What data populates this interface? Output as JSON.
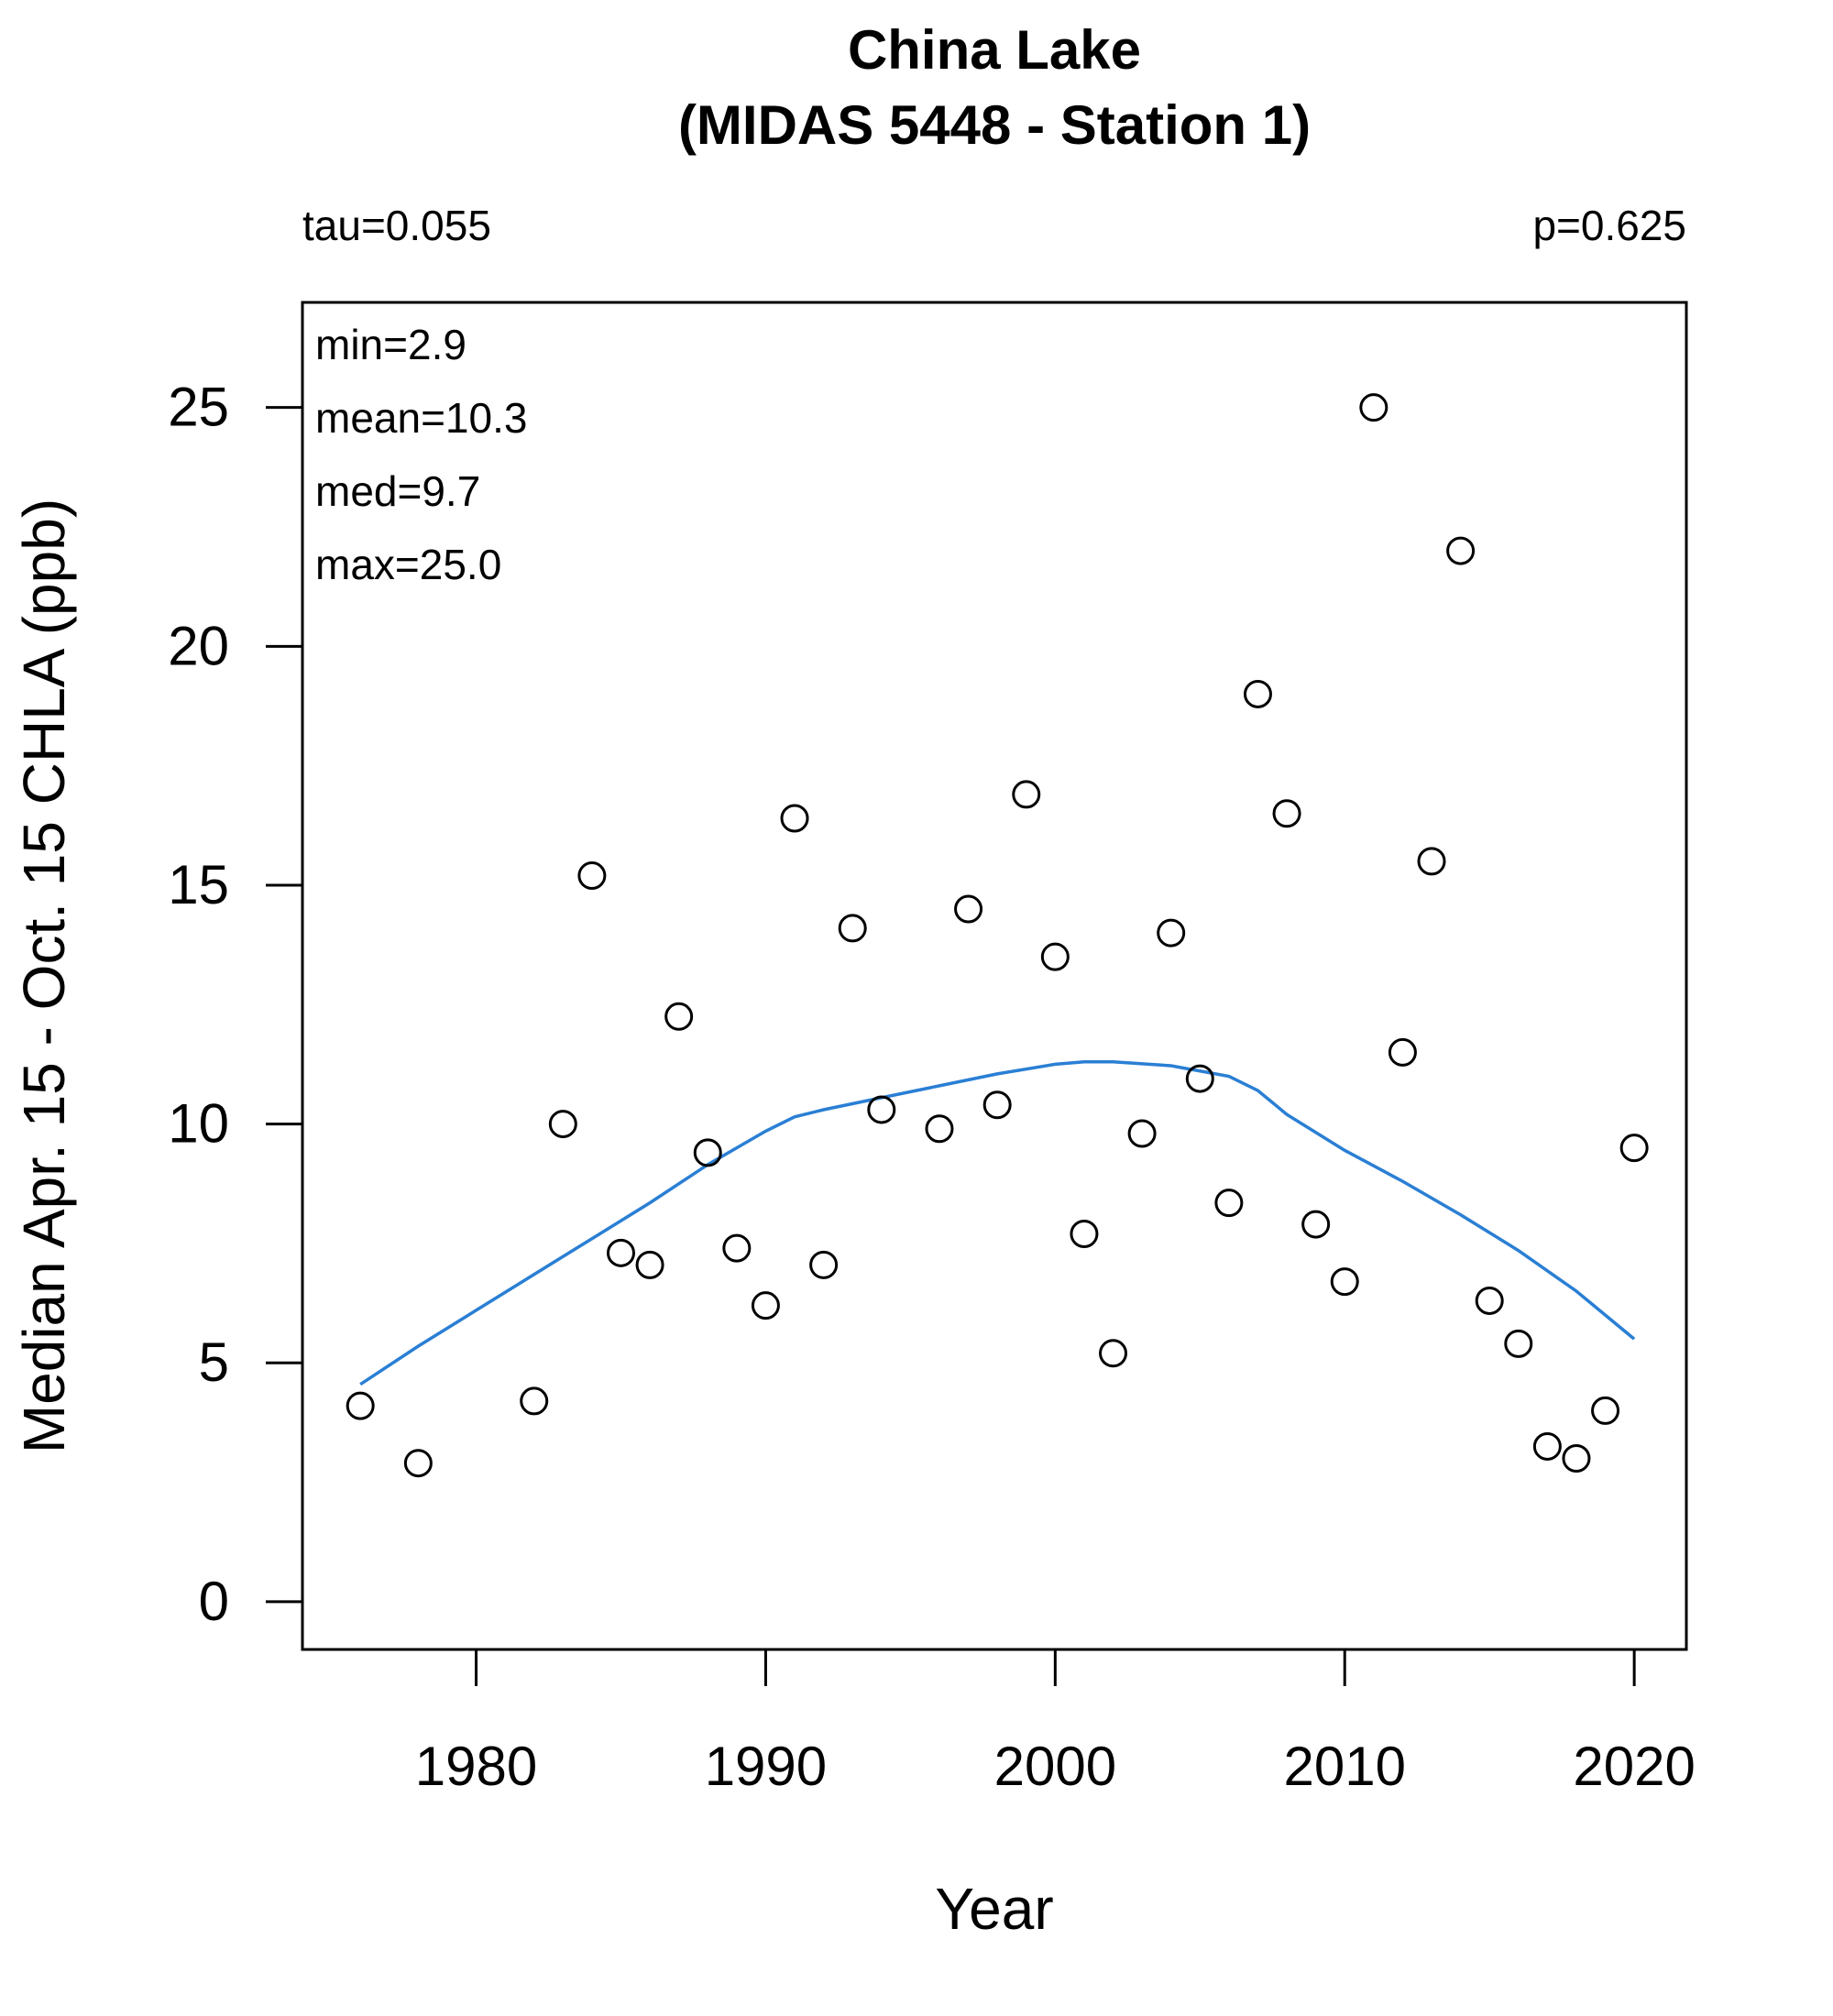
{
  "chart_data": {
    "type": "scatter",
    "title": "China Lake",
    "subtitle": "(MIDAS 5448 - Station 1)",
    "xlabel": "Year",
    "ylabel": "Median Apr. 15 - Oct. 15 CHLA (ppb)",
    "xlim": [
      1974,
      2021.8
    ],
    "ylim": [
      -1,
      27.2
    ],
    "x_ticks": [
      1980,
      1990,
      2000,
      2010,
      2020
    ],
    "y_ticks": [
      0,
      5,
      10,
      15,
      20,
      25
    ],
    "grid": false,
    "stats_top_left": "tau=0.055",
    "stats_top_right": "p=0.625",
    "summary": [
      "min=2.9",
      "mean=10.3",
      "med=9.7",
      "max=25.0"
    ],
    "trend_color": "#2a7fd4",
    "points": [
      {
        "x": 1976,
        "y": 4.1
      },
      {
        "x": 1978,
        "y": 2.9
      },
      {
        "x": 1982,
        "y": 4.2
      },
      {
        "x": 1983,
        "y": 10.0
      },
      {
        "x": 1984,
        "y": 15.2
      },
      {
        "x": 1985,
        "y": 7.3
      },
      {
        "x": 1986,
        "y": 7.05
      },
      {
        "x": 1987,
        "y": 12.25
      },
      {
        "x": 1988,
        "y": 9.4
      },
      {
        "x": 1989,
        "y": 7.4
      },
      {
        "x": 1990,
        "y": 6.2
      },
      {
        "x": 1991,
        "y": 16.4
      },
      {
        "x": 1992,
        "y": 7.05
      },
      {
        "x": 1993,
        "y": 14.1
      },
      {
        "x": 1994,
        "y": 10.3
      },
      {
        "x": 1996,
        "y": 9.9
      },
      {
        "x": 1997,
        "y": 14.5
      },
      {
        "x": 1998,
        "y": 10.4
      },
      {
        "x": 1999,
        "y": 16.9
      },
      {
        "x": 2000,
        "y": 13.5
      },
      {
        "x": 2001,
        "y": 7.7
      },
      {
        "x": 2002,
        "y": 5.2
      },
      {
        "x": 2003,
        "y": 9.8
      },
      {
        "x": 2004,
        "y": 14.0
      },
      {
        "x": 2005,
        "y": 10.95
      },
      {
        "x": 2006,
        "y": 8.35
      },
      {
        "x": 2007,
        "y": 19.0
      },
      {
        "x": 2008,
        "y": 16.5
      },
      {
        "x": 2009,
        "y": 7.9
      },
      {
        "x": 2010,
        "y": 6.7
      },
      {
        "x": 2011,
        "y": 25.0
      },
      {
        "x": 2012,
        "y": 11.5
      },
      {
        "x": 2013,
        "y": 15.5
      },
      {
        "x": 2014,
        "y": 22.0
      },
      {
        "x": 2015,
        "y": 6.3
      },
      {
        "x": 2016,
        "y": 5.4
      },
      {
        "x": 2017,
        "y": 3.25
      },
      {
        "x": 2018,
        "y": 3.0
      },
      {
        "x": 2019,
        "y": 4.0
      },
      {
        "x": 2020,
        "y": 9.5
      }
    ],
    "trend": [
      {
        "x": 1976,
        "y": 4.55
      },
      {
        "x": 1978,
        "y": 5.35
      },
      {
        "x": 1980,
        "y": 6.1
      },
      {
        "x": 1982,
        "y": 6.85
      },
      {
        "x": 1984,
        "y": 7.6
      },
      {
        "x": 1986,
        "y": 8.35
      },
      {
        "x": 1988,
        "y": 9.15
      },
      {
        "x": 1990,
        "y": 9.85
      },
      {
        "x": 1991,
        "y": 10.15
      },
      {
        "x": 1992,
        "y": 10.3
      },
      {
        "x": 1994,
        "y": 10.55
      },
      {
        "x": 1996,
        "y": 10.8
      },
      {
        "x": 1998,
        "y": 11.05
      },
      {
        "x": 2000,
        "y": 11.25
      },
      {
        "x": 2001,
        "y": 11.3
      },
      {
        "x": 2002,
        "y": 11.3
      },
      {
        "x": 2004,
        "y": 11.22
      },
      {
        "x": 2006,
        "y": 11.0
      },
      {
        "x": 2007,
        "y": 10.7
      },
      {
        "x": 2008,
        "y": 10.2
      },
      {
        "x": 2010,
        "y": 9.45
      },
      {
        "x": 2012,
        "y": 8.8
      },
      {
        "x": 2014,
        "y": 8.1
      },
      {
        "x": 2016,
        "y": 7.35
      },
      {
        "x": 2018,
        "y": 6.5
      },
      {
        "x": 2020,
        "y": 5.5
      }
    ]
  }
}
